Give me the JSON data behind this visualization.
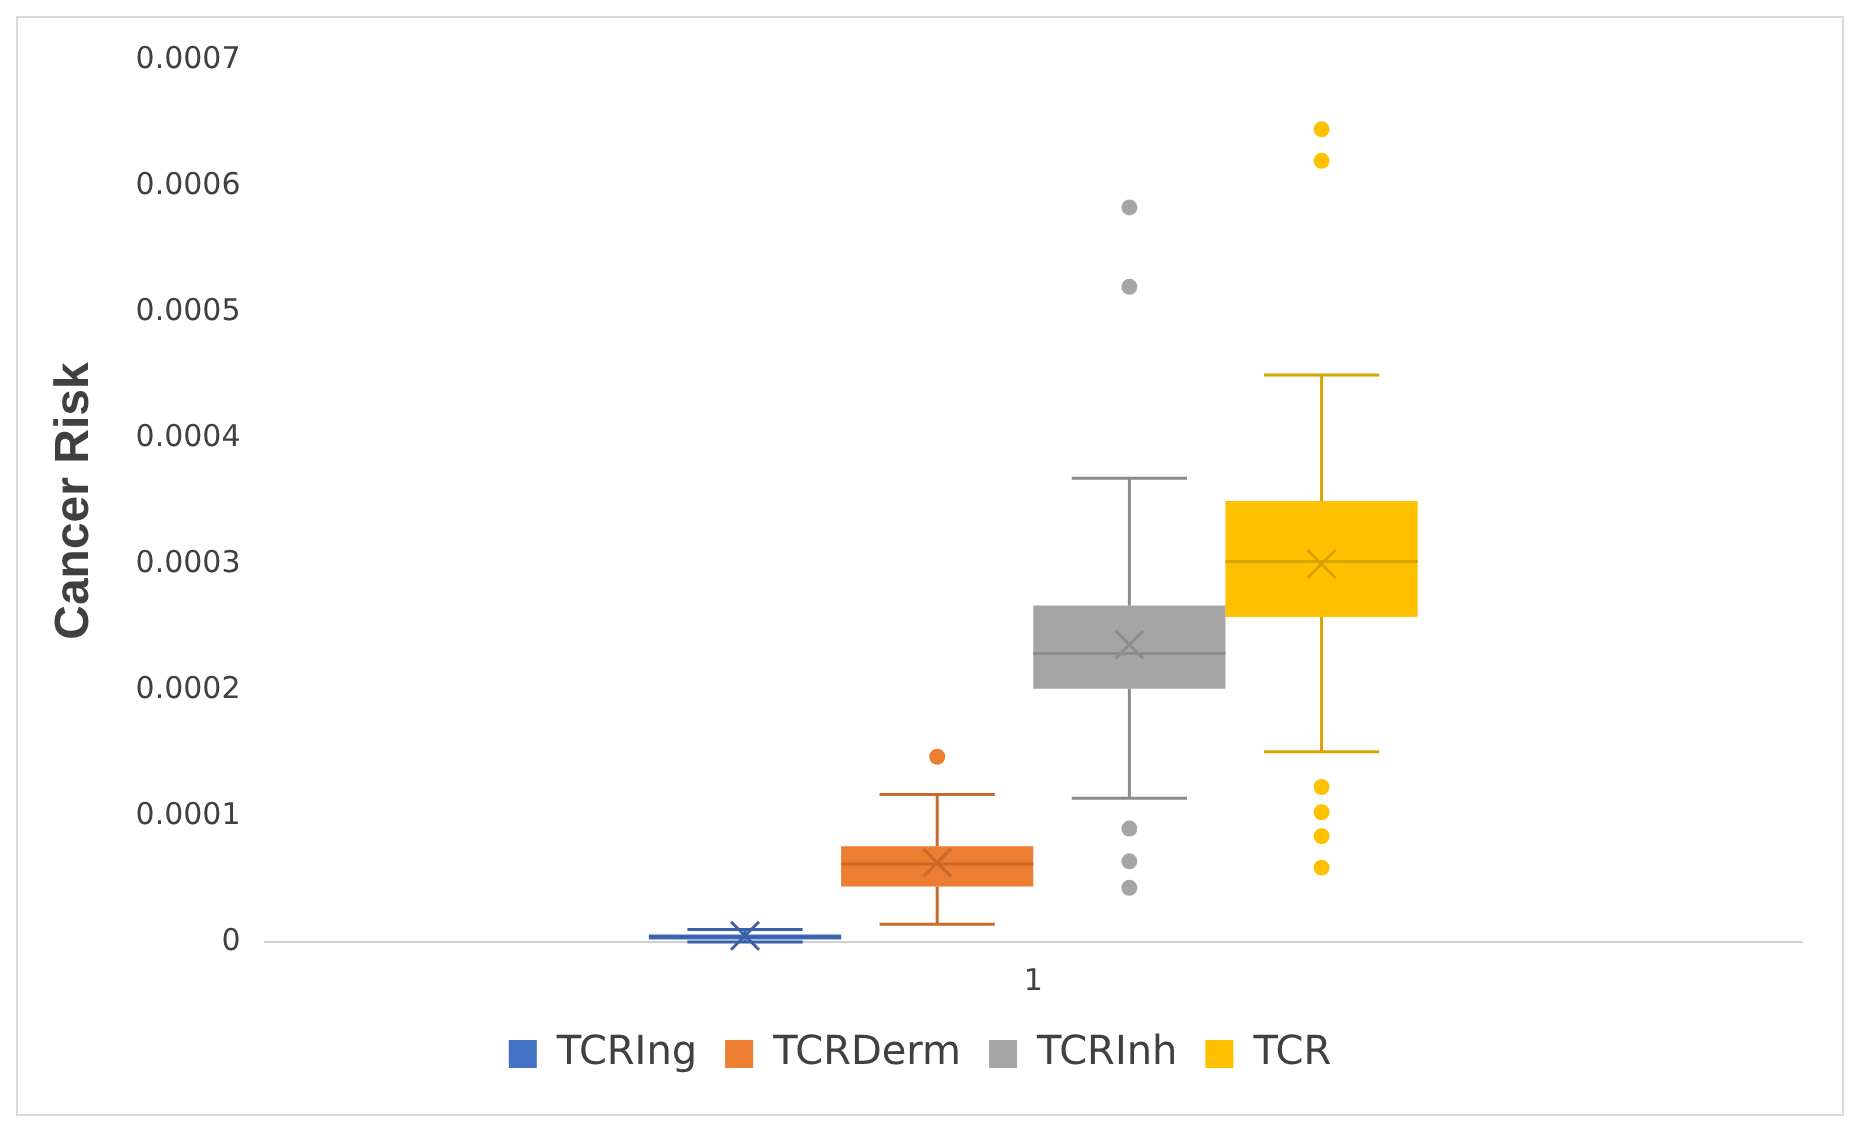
{
  "chart_data": {
    "type": "box",
    "ylabel": "Cancer Risk",
    "categories": [
      "1"
    ],
    "ylim": [
      0,
      0.0007
    ],
    "yticks": [
      0,
      0.0001,
      0.0002,
      0.0003,
      0.0004,
      0.0005,
      0.0006,
      0.0007
    ],
    "grid": false,
    "legend": "bottom",
    "series": [
      {
        "name": "TCRIng",
        "color": "#4472c4",
        "boxes": [
          {
            "low": 0,
            "q1": 2e-06,
            "median": 4e-06,
            "q3": 6e-06,
            "high": 1e-05,
            "mean": 5e-06
          }
        ]
      },
      {
        "name": "TCRDerm",
        "color": "#ed7d31",
        "boxes": [
          {
            "low": 1.4e-05,
            "q1": 4.4e-05,
            "median": 6.2e-05,
            "q3": 7.6e-05,
            "high": 0.000117,
            "mean": 6.3e-05,
            "outliers": [
              0.000147
            ]
          }
        ]
      },
      {
        "name": "TCRInh",
        "color": "#a5a5a5",
        "boxes": [
          {
            "low": 0.000114,
            "q1": 0.000201,
            "median": 0.000229,
            "q3": 0.000267,
            "high": 0.000368,
            "mean": 0.000236,
            "outliers": [
              0.000583,
              0.00052,
              9e-05,
              6.4e-05,
              4.3e-05
            ]
          }
        ]
      },
      {
        "name": "TCR",
        "color": "#ffc000",
        "boxes": [
          {
            "low": 0.000151,
            "q1": 0.000258,
            "median": 0.000302,
            "q3": 0.00035,
            "high": 0.00045,
            "mean": 0.0003,
            "outliers": [
              0.000645,
              0.00062,
              0.000123,
              0.000103,
              8.4e-05,
              5.9e-05
            ]
          }
        ]
      }
    ]
  }
}
